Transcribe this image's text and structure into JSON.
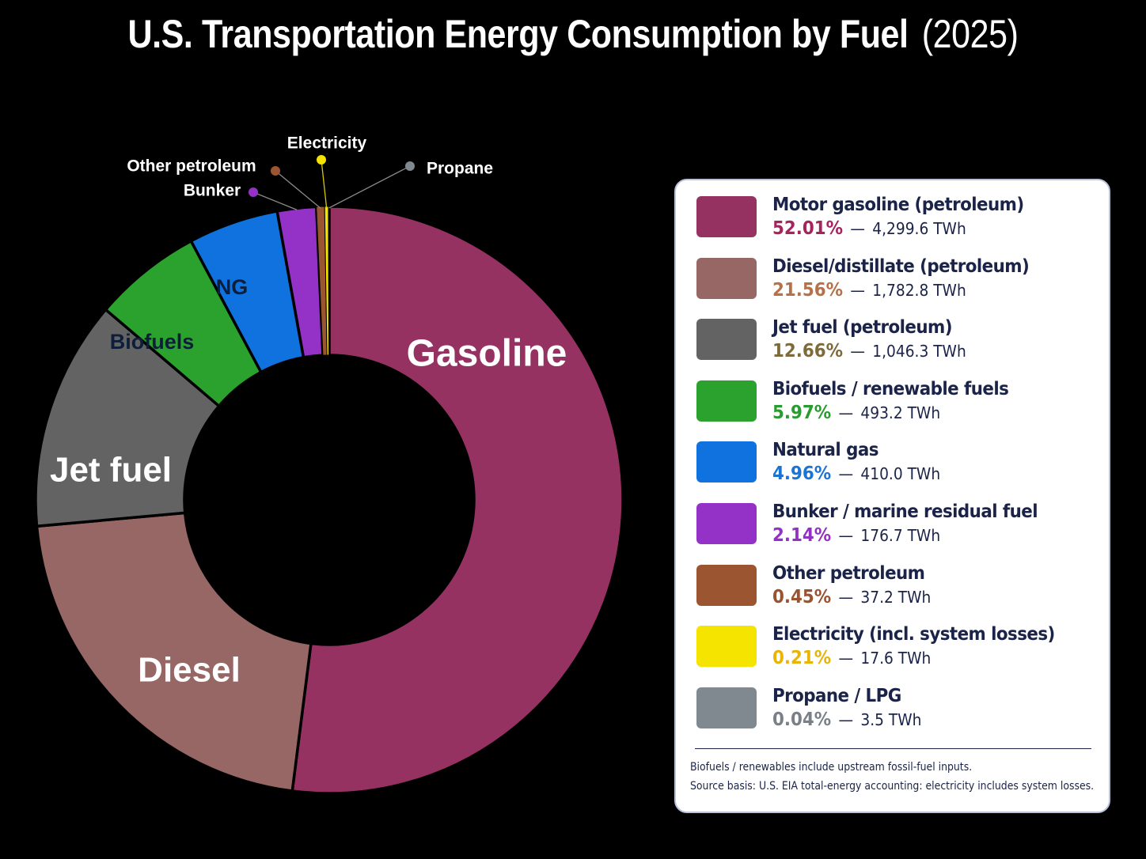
{
  "title": {
    "main": "U.S. Transportation Energy Consumption by Fuel",
    "year": "(2025)"
  },
  "chart_data": {
    "type": "pie",
    "variant": "donut",
    "title": "U.S. Transportation Energy Consumption by Fuel (2025)",
    "unit": "TWh",
    "slices": [
      {
        "label": "Gasoline",
        "legend": "Motor gasoline (petroleum)",
        "pct": 52.01,
        "pct_label": "52.01%",
        "twh": 4299.6,
        "twh_label": "4,299.6 TWh",
        "color": "#963262",
        "pct_color": "#a6245e",
        "label_color": "#ffffff"
      },
      {
        "label": "Diesel",
        "legend": "Diesel/distillate (petroleum)",
        "pct": 21.56,
        "pct_label": "21.56%",
        "twh": 1782.8,
        "twh_label": "1,782.8 TWh",
        "color": "#966764",
        "pct_color": "#b5714a",
        "label_color": "#ffffff"
      },
      {
        "label": "Jet fuel",
        "legend": "Jet fuel (petroleum)",
        "pct": 12.66,
        "pct_label": "12.66%",
        "twh": 1046.3,
        "twh_label": "1,046.3 TWh",
        "color": "#636363",
        "pct_color": "#7e6b3c",
        "label_color": "#ffffff"
      },
      {
        "label": "Biofuels",
        "legend": "Biofuels / renewable fuels",
        "pct": 5.97,
        "pct_label": "5.97%",
        "twh": 493.2,
        "twh_label": "493.2 TWh",
        "color": "#2ca22e",
        "pct_color": "#2a9b30",
        "label_color": "#0c1e3a"
      },
      {
        "label": "NG",
        "legend": "Natural gas",
        "pct": 4.96,
        "pct_label": "4.96%",
        "twh": 410.0,
        "twh_label": "410.0 TWh",
        "color": "#0f72de",
        "pct_color": "#1a74d6",
        "label_color": "#0c1e3a"
      },
      {
        "label": "Bunker",
        "legend": "Bunker / marine residual fuel",
        "pct": 2.14,
        "pct_label": "2.14%",
        "twh": 176.7,
        "twh_label": "176.7 TWh",
        "color": "#9432c8",
        "pct_color": "#9331c4",
        "label_color": "#ffffff"
      },
      {
        "label": "Other petroleum",
        "legend": "Other petroleum",
        "pct": 0.45,
        "pct_label": "0.45%",
        "twh": 37.2,
        "twh_label": "37.2 TWh",
        "color": "#9b5530",
        "pct_color": "#9a5330",
        "label_color": "#ffffff"
      },
      {
        "label": "Electricity",
        "legend": "Electricity (incl. system losses)",
        "pct": 0.21,
        "pct_label": "0.21%",
        "twh": 17.6,
        "twh_label": "17.6 TWh",
        "color": "#f5e300",
        "pct_color": "#e8b408",
        "label_color": "#ffffff"
      },
      {
        "label": "Propane",
        "legend": "Propane / LPG",
        "pct": 0.04,
        "pct_label": "0.04%",
        "twh": 3.5,
        "twh_label": "3.5 TWh",
        "color": "#808890",
        "pct_color": "#7a8088",
        "label_color": "#ffffff"
      }
    ],
    "legend_position": "right",
    "notes": [
      "Biofuels / renewables include upstream fossil-fuel inputs.",
      "Source basis: U.S. EIA total-energy accounting: electricity includes system losses."
    ]
  }
}
